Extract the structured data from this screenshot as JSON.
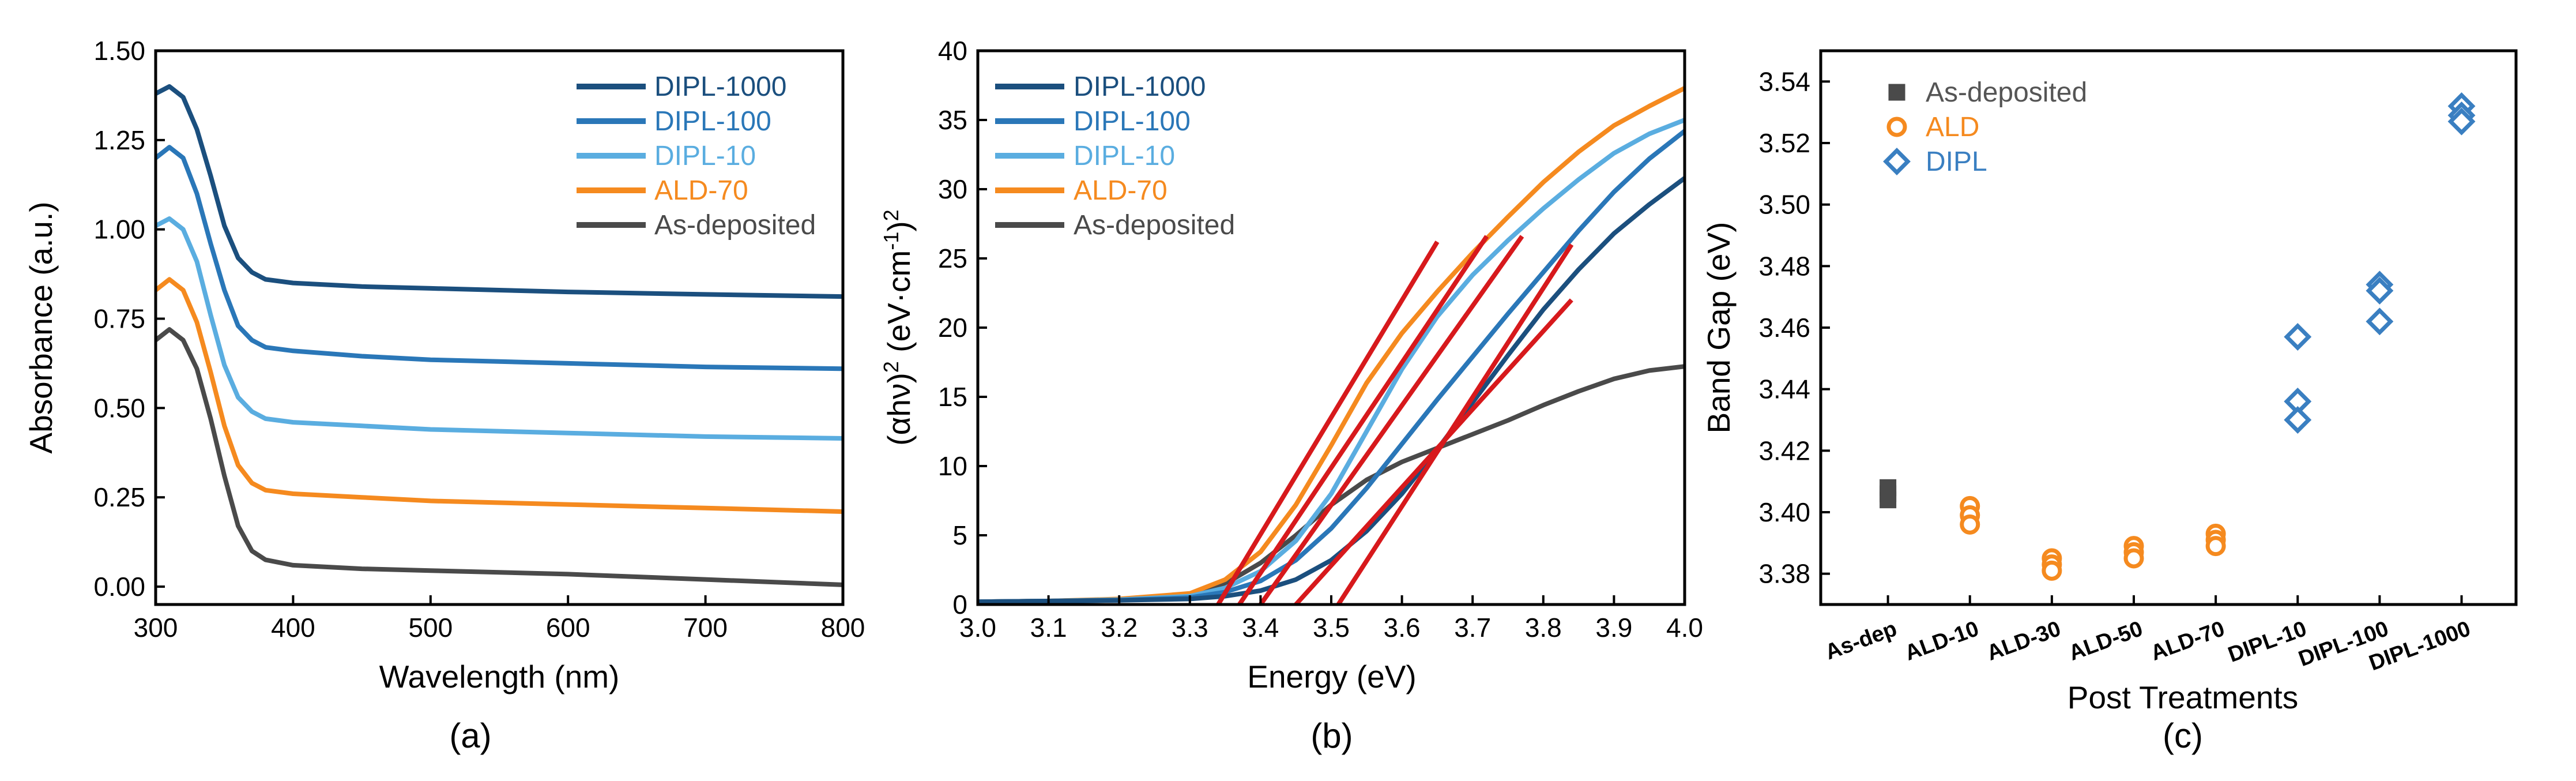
{
  "colors": {
    "DIPL-1000": "#1b4f7e",
    "DIPL-100": "#2a77b8",
    "DIPL-10": "#5aade0",
    "ALD-70": "#f58a1f",
    "As-deposited": "#4a4a4a",
    "fit": "#d7191c",
    "ALD": "#f58a1f",
    "DIPL": "#3a7fc1"
  },
  "panel_labels": [
    "(a)",
    "(b)",
    "(c)"
  ],
  "chart_data": [
    {
      "id": "a",
      "type": "line",
      "title": "",
      "xlabel": "Wavelength (nm)",
      "ylabel": "Absorbance (a.u.)",
      "xlim": [
        300,
        800
      ],
      "ylim": [
        -0.05,
        1.5
      ],
      "xticks": [
        300,
        400,
        500,
        600,
        700,
        800
      ],
      "yticks": [
        0.0,
        0.25,
        0.5,
        0.75,
        1.0,
        1.25,
        1.5
      ],
      "xtick_labels": [
        "300",
        "400",
        "500",
        "600",
        "700",
        "800"
      ],
      "ytick_labels": [
        "0.00",
        "0.25",
        "0.50",
        "0.75",
        "1.00",
        "1.25",
        "1.50"
      ],
      "legend": [
        "DIPL-1000",
        "DIPL-100",
        "DIPL-10",
        "ALD-70",
        "As-deposited"
      ],
      "series": [
        {
          "name": "DIPL-1000",
          "x": [
            300,
            310,
            320,
            330,
            340,
            350,
            360,
            370,
            380,
            400,
            450,
            500,
            550,
            600,
            700,
            800
          ],
          "values": [
            1.38,
            1.4,
            1.37,
            1.28,
            1.15,
            1.01,
            0.92,
            0.88,
            0.86,
            0.85,
            0.84,
            0.835,
            0.83,
            0.825,
            0.818,
            0.812
          ]
        },
        {
          "name": "DIPL-100",
          "x": [
            300,
            310,
            320,
            330,
            340,
            350,
            360,
            370,
            380,
            400,
            450,
            500,
            550,
            600,
            700,
            800
          ],
          "values": [
            1.2,
            1.23,
            1.2,
            1.1,
            0.96,
            0.83,
            0.73,
            0.69,
            0.67,
            0.66,
            0.645,
            0.635,
            0.63,
            0.625,
            0.615,
            0.61
          ]
        },
        {
          "name": "DIPL-10",
          "x": [
            300,
            310,
            320,
            330,
            340,
            350,
            360,
            370,
            380,
            400,
            450,
            500,
            550,
            600,
            700,
            800
          ],
          "values": [
            1.01,
            1.03,
            1.0,
            0.91,
            0.76,
            0.62,
            0.53,
            0.49,
            0.47,
            0.46,
            0.45,
            0.44,
            0.435,
            0.43,
            0.42,
            0.415
          ]
        },
        {
          "name": "ALD-70",
          "x": [
            300,
            310,
            320,
            330,
            340,
            350,
            360,
            370,
            380,
            400,
            450,
            500,
            550,
            600,
            700,
            800
          ],
          "values": [
            0.83,
            0.86,
            0.83,
            0.74,
            0.6,
            0.45,
            0.34,
            0.29,
            0.27,
            0.26,
            0.25,
            0.24,
            0.235,
            0.23,
            0.22,
            0.21
          ]
        },
        {
          "name": "As-deposited",
          "x": [
            300,
            310,
            320,
            330,
            340,
            350,
            360,
            370,
            380,
            400,
            450,
            500,
            550,
            600,
            700,
            800
          ],
          "values": [
            0.69,
            0.72,
            0.69,
            0.61,
            0.47,
            0.31,
            0.17,
            0.1,
            0.075,
            0.06,
            0.05,
            0.045,
            0.04,
            0.035,
            0.02,
            0.005
          ]
        }
      ]
    },
    {
      "id": "b",
      "type": "line",
      "title": "",
      "xlabel": "Energy (eV)",
      "ylabel": "(αhν)² (eV·cm⁻¹)²",
      "ylabel_parts": {
        "main": "(αhν)",
        "sup1": "2",
        "mid": " (eV·cm",
        "sup2": "-1",
        "end": ")",
        "sup3": "2"
      },
      "xlim": [
        3.0,
        4.0
      ],
      "ylim": [
        0,
        40
      ],
      "xticks": [
        3.0,
        3.1,
        3.2,
        3.3,
        3.4,
        3.5,
        3.6,
        3.7,
        3.8,
        3.9,
        4.0
      ],
      "yticks": [
        0,
        5,
        10,
        15,
        20,
        25,
        30,
        35,
        40
      ],
      "xtick_labels": [
        "3.0",
        "3.1",
        "3.2",
        "3.3",
        "3.4",
        "3.5",
        "3.6",
        "3.7",
        "3.8",
        "3.9",
        "4.0"
      ],
      "ytick_labels": [
        "0",
        "5",
        "10",
        "15",
        "20",
        "25",
        "30",
        "35",
        "40"
      ],
      "legend": [
        "DIPL-1000",
        "DIPL-100",
        "DIPL-10",
        "ALD-70",
        "As-deposited"
      ],
      "series": [
        {
          "name": "DIPL-1000",
          "x": [
            3.0,
            3.1,
            3.2,
            3.3,
            3.35,
            3.4,
            3.45,
            3.5,
            3.55,
            3.6,
            3.65,
            3.7,
            3.75,
            3.8,
            3.85,
            3.9,
            3.95,
            4.0
          ],
          "values": [
            0.2,
            0.25,
            0.3,
            0.4,
            0.6,
            1.0,
            1.8,
            3.2,
            5.3,
            8.0,
            11.2,
            14.6,
            18.0,
            21.3,
            24.2,
            26.8,
            28.9,
            30.8
          ]
        },
        {
          "name": "DIPL-100",
          "x": [
            3.0,
            3.1,
            3.2,
            3.3,
            3.35,
            3.4,
            3.45,
            3.5,
            3.55,
            3.6,
            3.65,
            3.7,
            3.75,
            3.8,
            3.85,
            3.9,
            3.95,
            4.0
          ],
          "values": [
            0.2,
            0.25,
            0.3,
            0.5,
            0.9,
            1.7,
            3.2,
            5.5,
            8.4,
            11.6,
            14.8,
            17.9,
            21.0,
            24.0,
            27.0,
            29.8,
            32.2,
            34.2
          ]
        },
        {
          "name": "DIPL-10",
          "x": [
            3.0,
            3.1,
            3.2,
            3.3,
            3.35,
            3.4,
            3.45,
            3.5,
            3.55,
            3.6,
            3.65,
            3.7,
            3.75,
            3.8,
            3.85,
            3.9,
            3.95,
            4.0
          ],
          "values": [
            0.2,
            0.25,
            0.35,
            0.6,
            1.2,
            2.4,
            4.6,
            8.0,
            12.5,
            17.0,
            20.8,
            23.8,
            26.3,
            28.6,
            30.7,
            32.6,
            34.0,
            35.0
          ]
        },
        {
          "name": "ALD-70",
          "x": [
            3.0,
            3.1,
            3.2,
            3.3,
            3.35,
            3.4,
            3.45,
            3.5,
            3.55,
            3.6,
            3.65,
            3.7,
            3.75,
            3.8,
            3.85,
            3.9,
            3.95,
            4.0
          ],
          "values": [
            0.2,
            0.25,
            0.4,
            0.8,
            1.8,
            3.8,
            7.2,
            11.5,
            16.0,
            19.6,
            22.6,
            25.4,
            28.0,
            30.5,
            32.7,
            34.6,
            36.0,
            37.3
          ]
        },
        {
          "name": "As-deposited",
          "x": [
            3.0,
            3.1,
            3.2,
            3.3,
            3.35,
            3.4,
            3.45,
            3.5,
            3.55,
            3.6,
            3.65,
            3.7,
            3.75,
            3.8,
            3.85,
            3.9,
            3.95,
            4.0
          ],
          "values": [
            0.2,
            0.25,
            0.35,
            0.7,
            1.5,
            3.0,
            5.0,
            7.2,
            9.0,
            10.3,
            11.3,
            12.3,
            13.3,
            14.4,
            15.4,
            16.3,
            16.9,
            17.2
          ]
        }
      ],
      "fit_lines": [
        {
          "x": [
            3.34,
            3.65
          ],
          "values": [
            0,
            26.2
          ]
        },
        {
          "x": [
            3.37,
            3.72
          ],
          "values": [
            0,
            26.6
          ]
        },
        {
          "x": [
            3.4,
            3.77
          ],
          "values": [
            0,
            26.6
          ]
        },
        {
          "x": [
            3.45,
            3.84
          ],
          "values": [
            0,
            22.0
          ]
        },
        {
          "x": [
            3.51,
            3.84
          ],
          "values": [
            0,
            26.0
          ]
        }
      ]
    },
    {
      "id": "c",
      "type": "scatter",
      "title": "",
      "xlabel": "Post Treatments",
      "ylabel": "Band Gap (eV)",
      "ylim": [
        3.37,
        3.55
      ],
      "yticks": [
        3.38,
        3.4,
        3.42,
        3.44,
        3.46,
        3.48,
        3.5,
        3.52,
        3.54
      ],
      "ytick_labels": [
        "3.38",
        "3.40",
        "3.42",
        "3.44",
        "3.46",
        "3.48",
        "3.50",
        "3.52",
        "3.54"
      ],
      "categories": [
        "As-dep",
        "ALD-10",
        "ALD-30",
        "ALD-50",
        "ALD-70",
        "DIPL-10",
        "DIPL-100",
        "DIPL-1000"
      ],
      "legend": [
        "As-deposited",
        "ALD",
        "DIPL"
      ],
      "series": [
        {
          "name": "As-deposited",
          "marker": "square",
          "x": [
            "As-dep",
            "As-dep",
            "As-dep"
          ],
          "values": [
            3.408,
            3.406,
            3.404
          ]
        },
        {
          "name": "ALD",
          "marker": "circle",
          "x": [
            "ALD-10",
            "ALD-10",
            "ALD-10",
            "ALD-30",
            "ALD-30",
            "ALD-30",
            "ALD-50",
            "ALD-50",
            "ALD-50",
            "ALD-70",
            "ALD-70",
            "ALD-70"
          ],
          "values": [
            3.402,
            3.399,
            3.396,
            3.385,
            3.383,
            3.381,
            3.389,
            3.387,
            3.385,
            3.393,
            3.391,
            3.389
          ]
        },
        {
          "name": "DIPL",
          "marker": "diamond",
          "x": [
            "DIPL-10",
            "DIPL-10",
            "DIPL-10",
            "DIPL-100",
            "DIPL-100",
            "DIPL-100",
            "DIPL-1000",
            "DIPL-1000",
            "DIPL-1000"
          ],
          "values": [
            3.457,
            3.436,
            3.43,
            3.474,
            3.472,
            3.462,
            3.532,
            3.529,
            3.527
          ]
        }
      ]
    }
  ]
}
